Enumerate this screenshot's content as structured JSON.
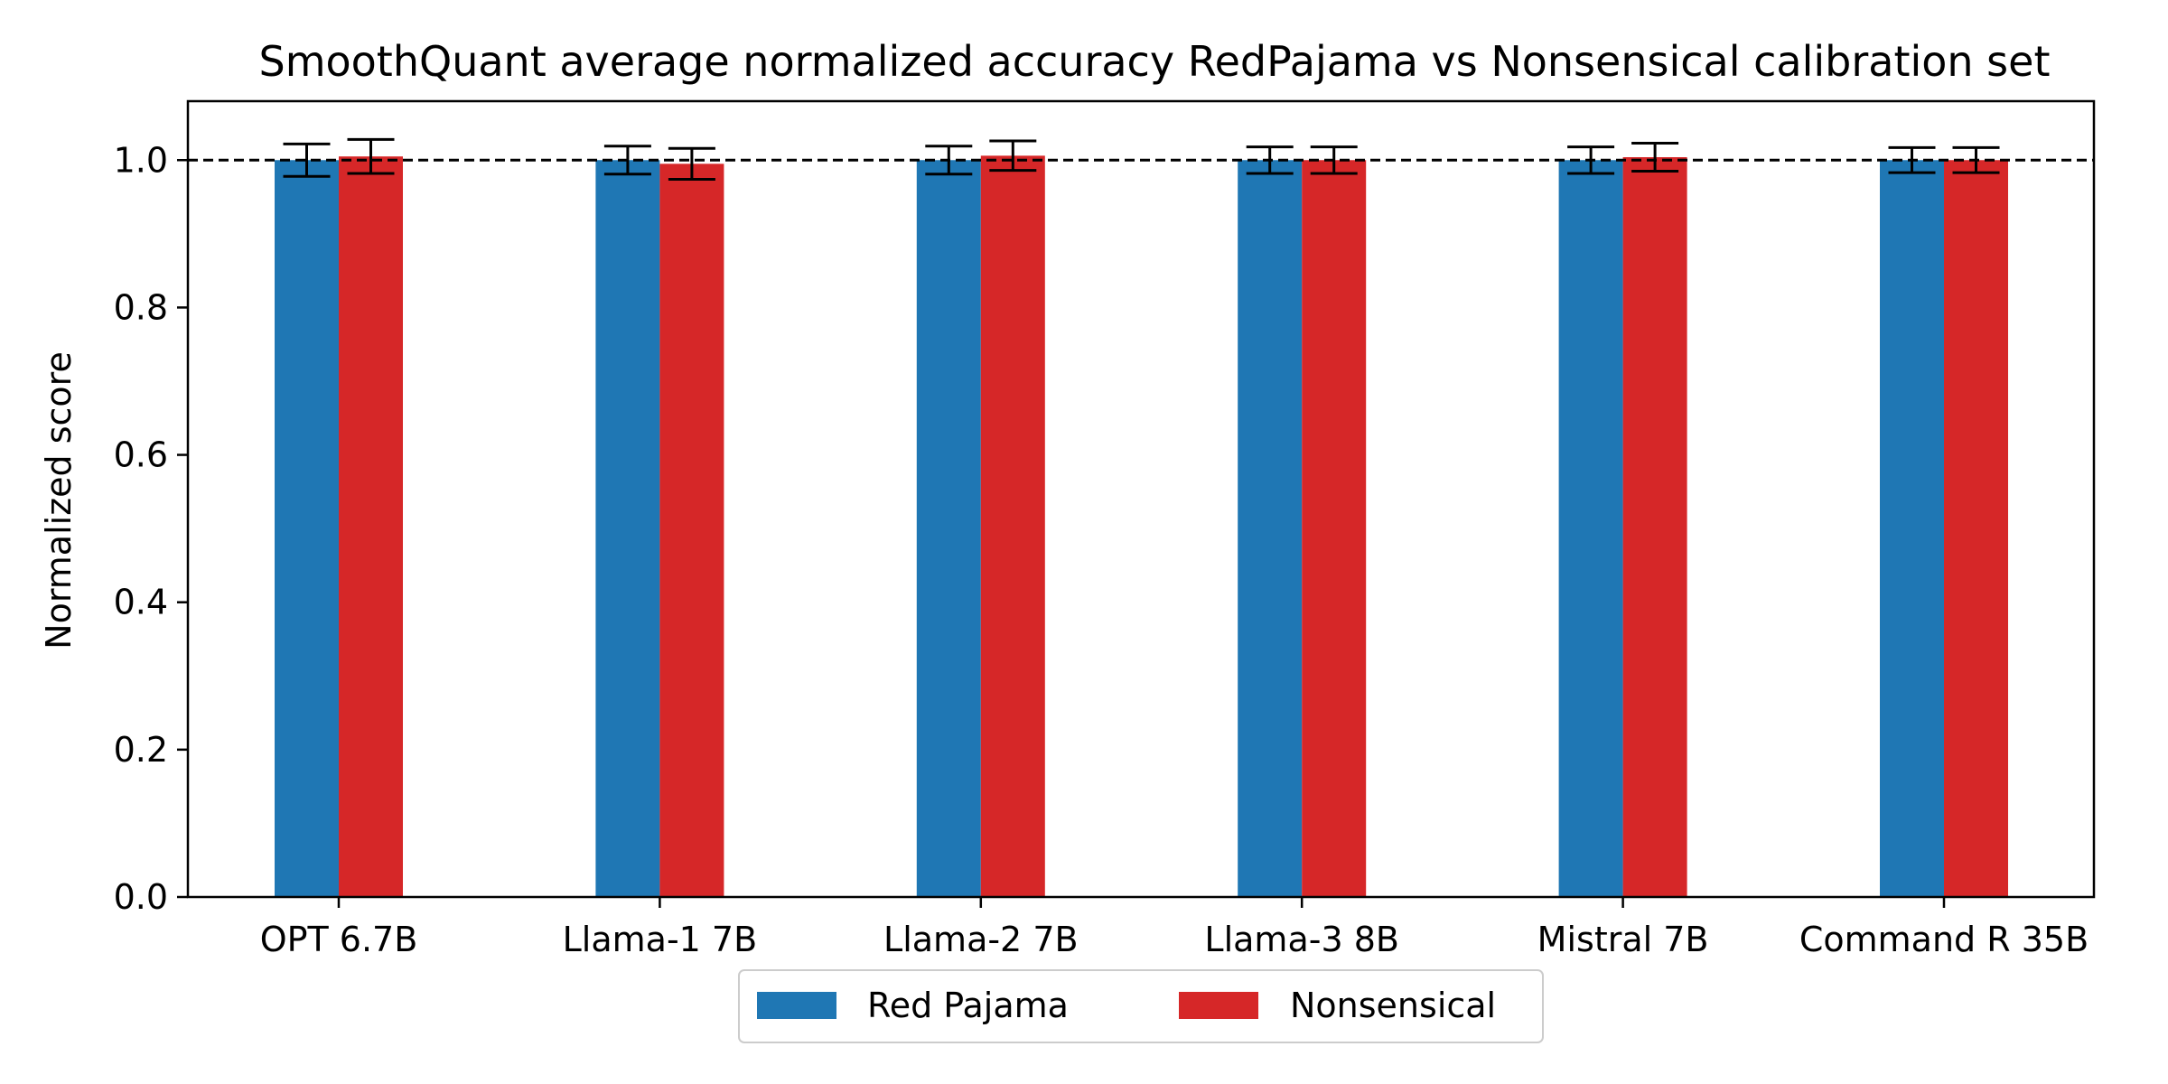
{
  "chart_data": {
    "type": "bar",
    "title": "SmoothQuant average normalized accuracy RedPajama vs Nonsensical calibration set",
    "xlabel": "",
    "ylabel": "Normalized score",
    "categories": [
      "OPT 6.7B",
      "Llama-1 7B",
      "Llama-2 7B",
      "Llama-3 8B",
      "Mistral 7B",
      "Command R 35B"
    ],
    "series": [
      {
        "name": "Red Pajama",
        "color": "#1f77b4",
        "values": [
          1.0,
          1.0,
          1.0,
          1.0,
          1.0,
          1.0
        ],
        "errors": [
          0.022,
          0.019,
          0.019,
          0.018,
          0.018,
          0.017
        ]
      },
      {
        "name": "Nonsensical",
        "color": "#d62728",
        "values": [
          1.005,
          0.995,
          1.006,
          1.0,
          1.004,
          1.0
        ],
        "errors": [
          0.023,
          0.021,
          0.02,
          0.018,
          0.019,
          0.017
        ]
      }
    ],
    "ylim": [
      0.0,
      1.08
    ],
    "yticks": [
      "0.0",
      "0.2",
      "0.4",
      "0.6",
      "0.8",
      "1.0"
    ],
    "reference_line": 1.0,
    "grid": false,
    "legend_position": "bottom-center"
  }
}
